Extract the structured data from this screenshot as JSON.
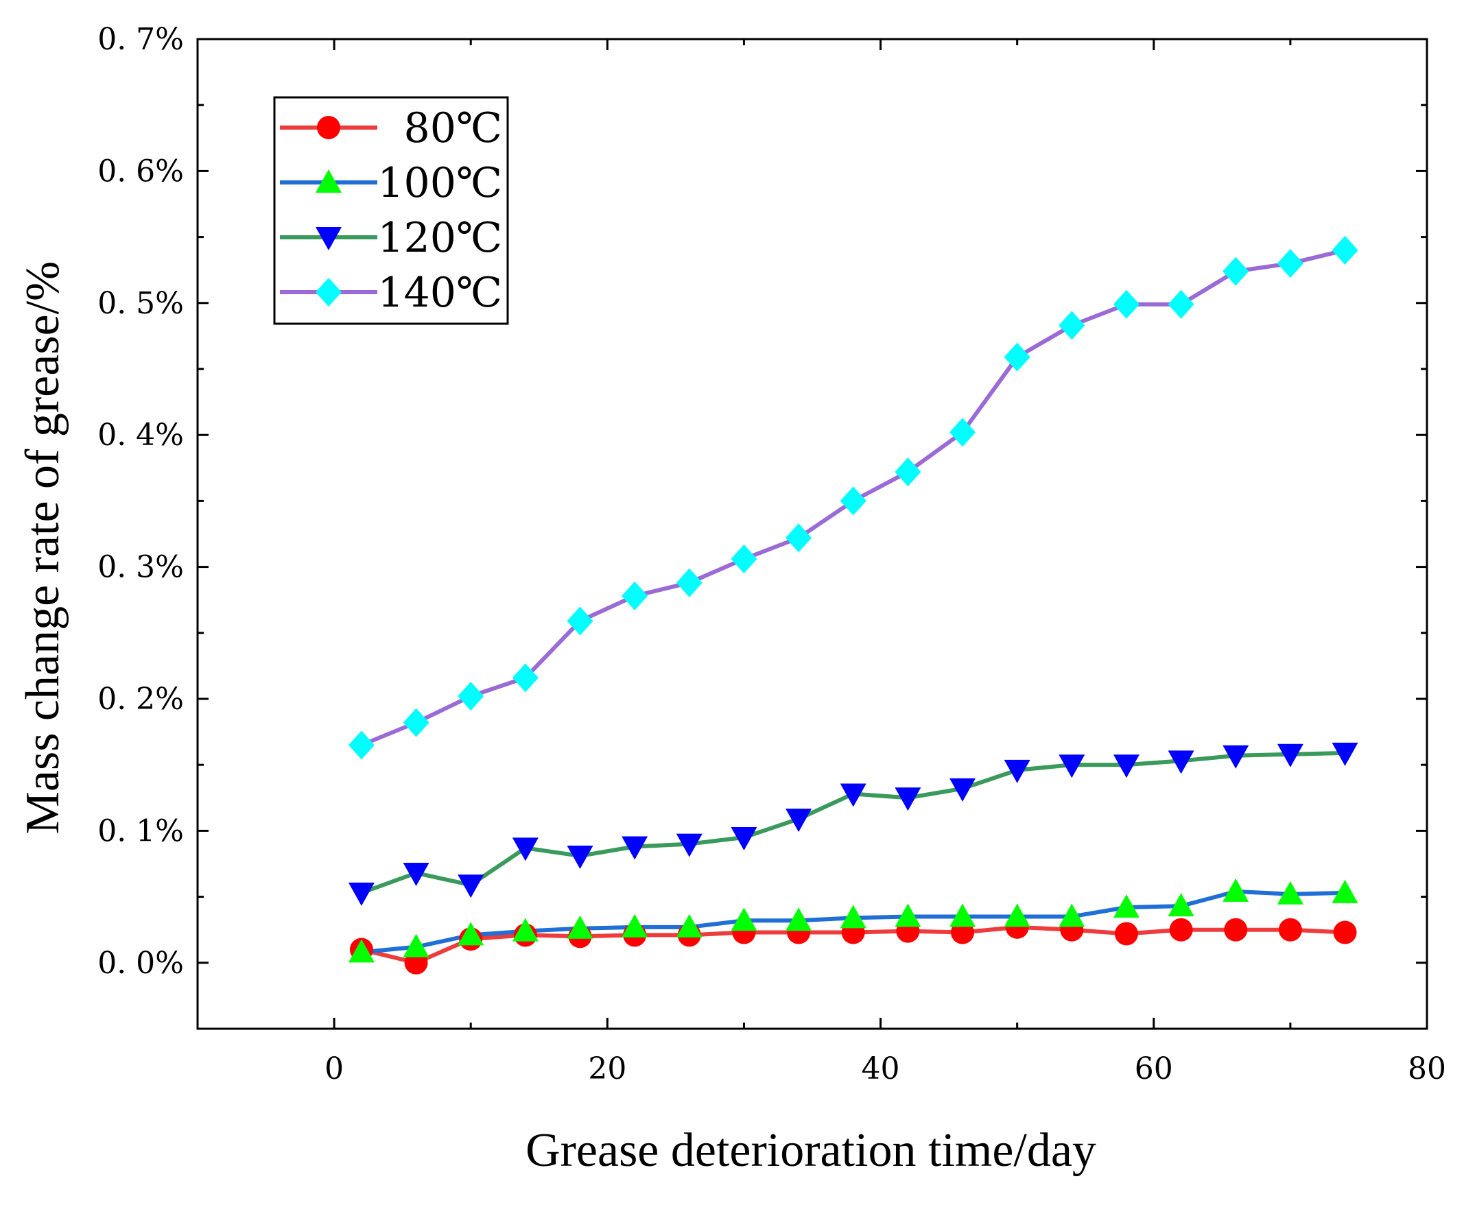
{
  "chart_data": {
    "type": "line",
    "xlabel": "Grease deterioration time/day",
    "ylabel": "Mass change rate of grease/%",
    "xlim": [
      -10,
      80
    ],
    "ylim": [
      -0.05,
      0.7
    ],
    "xticks": [
      0,
      20,
      40,
      60,
      80
    ],
    "xtick_labels": [
      "0",
      "20",
      "40",
      "60",
      "80"
    ],
    "yticks": [
      0.0,
      0.1,
      0.2,
      0.3,
      0.4,
      0.5,
      0.6,
      0.7
    ],
    "ytick_labels": [
      "0. 0%",
      "0. 1%",
      "0. 2%",
      "0. 3%",
      "0. 4%",
      "0. 5%",
      "0. 6%",
      "0. 7%"
    ],
    "legend_position": "top-left",
    "x": [
      2,
      6,
      10,
      14,
      18,
      22,
      26,
      30,
      34,
      38,
      42,
      46,
      50,
      54,
      58,
      62,
      66,
      70,
      74
    ],
    "series": [
      {
        "name": "80℃",
        "line_color": "#ee3b3b",
        "marker_color": "#ff0000",
        "marker": "circle",
        "values": [
          0.01,
          0.0,
          0.018,
          0.021,
          0.02,
          0.021,
          0.021,
          0.023,
          0.023,
          0.023,
          0.024,
          0.023,
          0.027,
          0.025,
          0.022,
          0.025,
          0.025,
          0.025,
          0.023
        ]
      },
      {
        "name": "100℃",
        "line_color": "#1f6fd6",
        "marker_color": "#00ff00",
        "marker": "triangle-up",
        "values": [
          0.008,
          0.012,
          0.021,
          0.024,
          0.026,
          0.027,
          0.027,
          0.032,
          0.032,
          0.034,
          0.035,
          0.035,
          0.035,
          0.035,
          0.042,
          0.043,
          0.054,
          0.052,
          0.053
        ]
      },
      {
        "name": "120℃",
        "line_color": "#3a9a5b",
        "marker_color": "#0000ff",
        "marker": "triangle-down",
        "values": [
          0.053,
          0.068,
          0.059,
          0.087,
          0.081,
          0.088,
          0.09,
          0.095,
          0.109,
          0.128,
          0.125,
          0.132,
          0.146,
          0.15,
          0.15,
          0.153,
          0.157,
          0.158,
          0.159
        ]
      },
      {
        "name": "140℃",
        "line_color": "#9a6bd6",
        "marker_color": "#00ffff",
        "marker": "diamond",
        "values": [
          0.165,
          0.182,
          0.202,
          0.216,
          0.259,
          0.278,
          0.288,
          0.306,
          0.322,
          0.35,
          0.372,
          0.402,
          0.459,
          0.483,
          0.499,
          0.499,
          0.524,
          0.53,
          0.54
        ]
      }
    ]
  }
}
